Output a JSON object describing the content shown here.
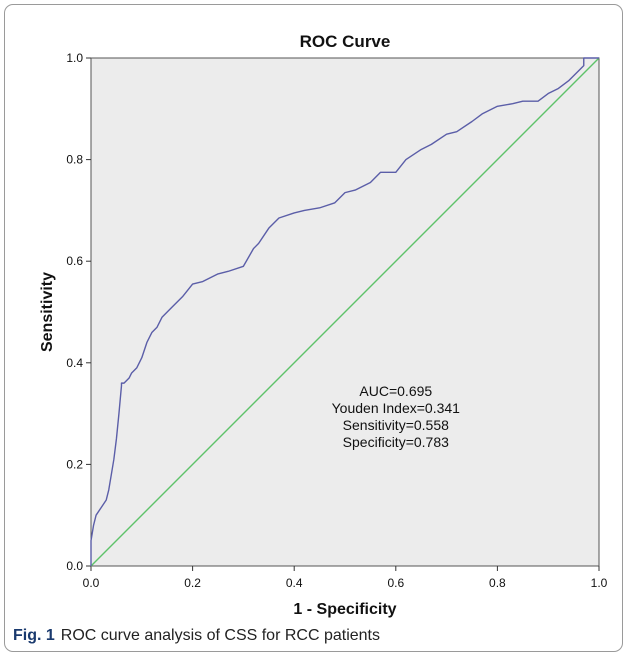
{
  "chart_data": {
    "type": "line",
    "title": "ROC Curve",
    "xlabel": "1 - Specificity",
    "ylabel": "Sensitivity",
    "xlim": [
      0,
      1
    ],
    "ylim": [
      0,
      1
    ],
    "x_ticks": [
      "0.0",
      "0.2",
      "0.4",
      "0.6",
      "0.8",
      "1.0"
    ],
    "y_ticks": [
      "0.0",
      "0.2",
      "0.4",
      "0.6",
      "0.8",
      "1.0"
    ],
    "grid": false,
    "background": "#ececec",
    "series": [
      {
        "role": "roc",
        "color": "#5b5ea8",
        "x": [
          0,
          0,
          0.005,
          0.01,
          0.02,
          0.03,
          0.035,
          0.04,
          0.045,
          0.05,
          0.055,
          0.06,
          0.06,
          0.065,
          0.075,
          0.08,
          0.09,
          0.1,
          0.11,
          0.12,
          0.13,
          0.14,
          0.16,
          0.18,
          0.2,
          0.22,
          0.25,
          0.27,
          0.3,
          0.32,
          0.33,
          0.35,
          0.37,
          0.4,
          0.42,
          0.45,
          0.48,
          0.5,
          0.52,
          0.55,
          0.57,
          0.6,
          0.62,
          0.65,
          0.67,
          0.7,
          0.72,
          0.75,
          0.77,
          0.8,
          0.83,
          0.85,
          0.88,
          0.9,
          0.92,
          0.94,
          0.96,
          0.97,
          0.97,
          1.0
        ],
        "y": [
          0,
          0.05,
          0.08,
          0.1,
          0.115,
          0.13,
          0.15,
          0.18,
          0.21,
          0.25,
          0.3,
          0.355,
          0.36,
          0.36,
          0.37,
          0.38,
          0.39,
          0.41,
          0.44,
          0.46,
          0.47,
          0.49,
          0.51,
          0.53,
          0.555,
          0.56,
          0.575,
          0.58,
          0.59,
          0.625,
          0.635,
          0.665,
          0.685,
          0.695,
          0.7,
          0.705,
          0.715,
          0.735,
          0.74,
          0.755,
          0.775,
          0.775,
          0.8,
          0.82,
          0.83,
          0.85,
          0.855,
          0.875,
          0.89,
          0.905,
          0.91,
          0.915,
          0.915,
          0.93,
          0.94,
          0.955,
          0.975,
          0.985,
          1.0,
          1.0
        ]
      },
      {
        "role": "reference",
        "color": "#5ec26a",
        "x": [
          0,
          1
        ],
        "y": [
          0,
          1
        ]
      }
    ],
    "annotations": [
      "AUC=0.695",
      "Youden Index=0.341",
      "Sensitivity=0.558",
      "Specificity=0.783"
    ]
  },
  "caption": {
    "label": "Fig. 1",
    "text": "ROC curve analysis of CSS for RCC patients"
  }
}
